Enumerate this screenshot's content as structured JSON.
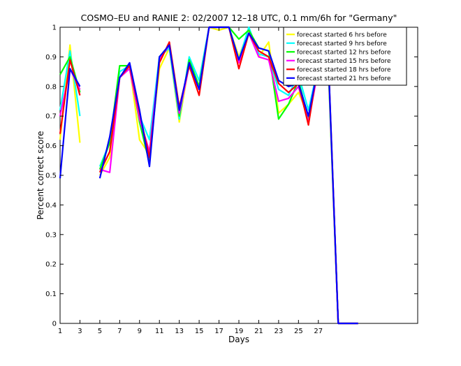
{
  "chart_data": {
    "type": "line",
    "title": "COSMO–EU and RANIE 2: 02/2007 12–18 UTC, 0.1 mm/6h for \"Germany\"",
    "xlabel": "Days",
    "ylabel": "Percent correct score",
    "xlim": [
      1,
      37
    ],
    "ylim": [
      0,
      1
    ],
    "x_ticks": [
      "1",
      "3",
      "5",
      "7",
      "9",
      "11",
      "13",
      "15",
      "17",
      "19",
      "21",
      "23",
      "25",
      "27"
    ],
    "y_ticks": [
      "0",
      "0.1",
      "0.2",
      "0.3",
      "0.4",
      "0.5",
      "0.6",
      "0.7",
      "0.8",
      "0.9",
      "1"
    ],
    "grid": false,
    "legend_position": "top-right",
    "x": [
      1,
      2,
      3,
      4,
      5,
      6,
      7,
      8,
      9,
      10,
      11,
      12,
      13,
      14,
      15,
      16,
      17,
      18,
      19,
      20,
      21,
      22,
      23,
      24,
      25,
      26,
      27,
      28,
      29,
      30,
      31
    ],
    "series": [
      {
        "name": "forecast started 6 hrs before",
        "color": "#ffff00",
        "values": [
          0.62,
          0.94,
          0.61,
          null,
          0.5,
          0.56,
          0.83,
          0.87,
          0.62,
          0.57,
          0.86,
          0.93,
          0.68,
          0.88,
          0.8,
          1.0,
          0.99,
          1.0,
          0.9,
          0.99,
          0.9,
          0.95,
          0.71,
          0.74,
          0.78,
          0.7,
          0.87,
          0.89,
          0.0,
          0.0,
          0.0
        ]
      },
      {
        "name": "forecast started 9 hrs before",
        "color": "#00ffff",
        "values": [
          0.72,
          0.92,
          0.7,
          null,
          0.53,
          0.61,
          0.85,
          0.87,
          0.7,
          0.62,
          0.9,
          0.93,
          0.69,
          0.9,
          0.82,
          1.0,
          1.0,
          1.0,
          0.89,
          1.0,
          0.91,
          0.9,
          0.79,
          0.77,
          0.84,
          0.72,
          0.87,
          0.88,
          0.0,
          0.0,
          0.0
        ]
      },
      {
        "name": "forecast started 12 hrs before",
        "color": "#00ff00",
        "values": [
          0.84,
          0.9,
          0.78,
          null,
          0.52,
          0.61,
          0.87,
          0.87,
          0.68,
          0.54,
          0.9,
          0.94,
          0.7,
          0.89,
          0.8,
          1.0,
          1.0,
          1.0,
          0.96,
          0.99,
          0.93,
          0.92,
          0.69,
          0.74,
          0.82,
          0.69,
          0.87,
          0.87,
          0.0,
          0.0,
          0.0
        ]
      },
      {
        "name": "forecast started 15 hrs before",
        "color": "#ff00ff",
        "values": [
          0.7,
          0.86,
          0.79,
          null,
          0.52,
          0.51,
          0.83,
          0.86,
          0.69,
          0.58,
          0.89,
          0.94,
          0.71,
          0.87,
          0.79,
          1.0,
          1.0,
          1.0,
          0.88,
          0.98,
          0.9,
          0.89,
          0.75,
          0.76,
          0.8,
          0.68,
          0.86,
          0.89,
          0.0,
          0.0,
          0.0
        ]
      },
      {
        "name": "forecast started 18 hrs before",
        "color": "#ff0000",
        "values": [
          0.64,
          0.89,
          0.77,
          null,
          0.51,
          0.58,
          0.83,
          0.87,
          0.71,
          0.56,
          0.88,
          0.95,
          0.73,
          0.87,
          0.77,
          1.0,
          1.0,
          1.0,
          0.86,
          0.98,
          0.92,
          0.9,
          0.81,
          0.78,
          0.81,
          0.67,
          0.88,
          0.9,
          0.0,
          0.0,
          0.0
        ]
      },
      {
        "name": "forecast started 21 hrs before",
        "color": "#0000ff",
        "values": [
          0.49,
          0.86,
          0.8,
          null,
          0.49,
          0.63,
          0.83,
          0.88,
          0.72,
          0.53,
          0.9,
          0.94,
          0.72,
          0.88,
          0.79,
          1.0,
          1.0,
          1.0,
          0.89,
          0.98,
          0.93,
          0.92,
          0.82,
          0.8,
          0.81,
          0.7,
          0.87,
          0.9,
          0.0,
          0.0,
          0.0
        ]
      }
    ]
  }
}
